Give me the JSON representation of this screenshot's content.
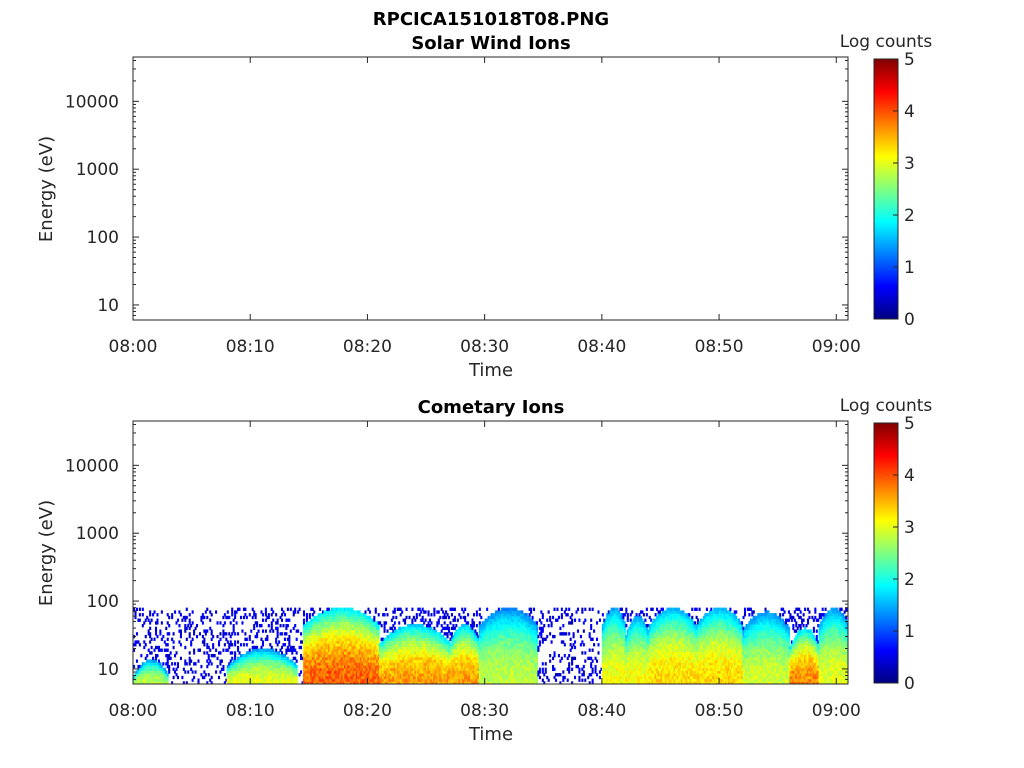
{
  "figure": {
    "title": "RPCICA151018T08.PNG"
  },
  "colors": {
    "axis": "#262626",
    "background": "#ffffff"
  },
  "chart_data": [
    {
      "type": "heatmap",
      "title": "Solar Wind Ions",
      "xlabel": "Time",
      "ylabel": "Energy (eV)",
      "yscale": "log",
      "x_ticks": [
        "08:00",
        "08:10",
        "08:20",
        "08:30",
        "08:40",
        "08:50",
        "09:00"
      ],
      "xlim": [
        "08:00",
        "09:01"
      ],
      "y_ticks": [
        10,
        100,
        1000,
        10000
      ],
      "y_tick_labels": [
        "10",
        "100",
        "1000",
        "10000"
      ],
      "ylim": [
        6,
        45000
      ],
      "colorbar": {
        "label": "Log counts",
        "range": [
          0,
          5
        ],
        "ticks": [
          0,
          1,
          2,
          3,
          4,
          5
        ],
        "tick_labels": [
          "0",
          "1",
          "2",
          "3",
          "4",
          "5"
        ],
        "colormap": "jet"
      },
      "bands": []
    },
    {
      "type": "heatmap",
      "title": "Cometary Ions",
      "xlabel": "Time",
      "ylabel": "Energy (eV)",
      "yscale": "log",
      "x_ticks": [
        "08:00",
        "08:10",
        "08:20",
        "08:30",
        "08:40",
        "08:50",
        "09:00"
      ],
      "xlim": [
        "08:00",
        "09:01"
      ],
      "y_ticks": [
        10,
        100,
        1000,
        10000
      ],
      "y_tick_labels": [
        "10",
        "100",
        "1000",
        "10000"
      ],
      "ylim": [
        6,
        45000
      ],
      "colorbar": {
        "label": "Log counts",
        "range": [
          0,
          5
        ],
        "ticks": [
          0,
          1,
          2,
          3,
          4,
          5
        ],
        "tick_labels": [
          "0",
          "1",
          "2",
          "3",
          "4",
          "5"
        ],
        "colormap": "jet"
      },
      "sparse_upper_energy": 80,
      "bands": [
        {
          "start": "08:00",
          "end": "08:03",
          "top_energy": 14,
          "peak_log_counts": 2.8
        },
        {
          "start": "08:08",
          "end": "08:14",
          "top_energy": 20,
          "peak_log_counts": 3.0
        },
        {
          "start": "08:14.5",
          "end": "08:21",
          "top_energy": 80,
          "peak_log_counts": 3.9
        },
        {
          "start": "08:21",
          "end": "08:27",
          "top_energy": 45,
          "peak_log_counts": 3.6
        },
        {
          "start": "08:27",
          "end": "08:29.5",
          "top_energy": 45,
          "peak_log_counts": 3.6
        },
        {
          "start": "08:29.5",
          "end": "08:34.5",
          "top_energy": 80,
          "peak_log_counts": 2.8
        },
        {
          "start": "08:40",
          "end": "08:42",
          "top_energy": 80,
          "peak_log_counts": 3.1
        },
        {
          "start": "08:42",
          "end": "08:44",
          "top_energy": 60,
          "peak_log_counts": 3.1
        },
        {
          "start": "08:44",
          "end": "08:48",
          "top_energy": 80,
          "peak_log_counts": 3.3
        },
        {
          "start": "08:48",
          "end": "08:52",
          "top_energy": 80,
          "peak_log_counts": 3.3
        },
        {
          "start": "08:52",
          "end": "08:56",
          "top_energy": 70,
          "peak_log_counts": 2.9
        },
        {
          "start": "08:56",
          "end": "08:58.5",
          "top_energy": 40,
          "peak_log_counts": 3.7
        },
        {
          "start": "08:58.5",
          "end": "09:01",
          "top_energy": 80,
          "peak_log_counts": 3.0
        }
      ]
    }
  ]
}
